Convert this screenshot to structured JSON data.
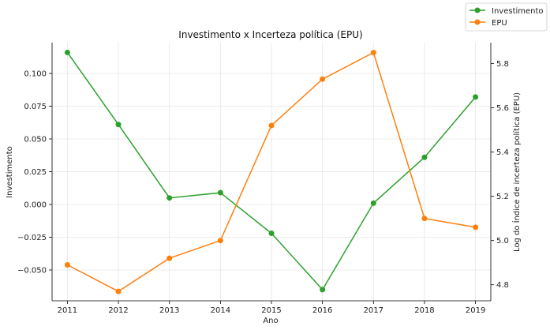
{
  "chart_data": {
    "type": "line",
    "title": "Investimento x Incerteza política (EPU)",
    "xlabel": "Ano",
    "ylabel_left": "Investimento",
    "ylabel_right": "Log do Índice de incerteza política (EPU)",
    "x": [
      2011,
      2012,
      2013,
      2014,
      2015,
      2016,
      2017,
      2018,
      2019
    ],
    "x_ticks": [
      "2011",
      "2012",
      "2013",
      "2014",
      "2015",
      "2016",
      "2017",
      "2018",
      "2019"
    ],
    "y_left_ticks": [
      "0.100",
      "0.075",
      "0.050",
      "0.025",
      "0.000",
      "−0.025",
      "−0.050"
    ],
    "y_left_tick_values": [
      0.1,
      0.075,
      0.05,
      0.025,
      0.0,
      -0.025,
      -0.05
    ],
    "y_right_ticks": [
      "5.8",
      "5.6",
      "5.4",
      "5.2",
      "5.0",
      "4.8"
    ],
    "y_right_tick_values": [
      5.8,
      5.6,
      5.4,
      5.2,
      5.0,
      4.8
    ],
    "ylim_left": [
      -0.0735,
      0.1235
    ],
    "ylim_right": [
      4.7276,
      5.8949
    ],
    "grid": true,
    "legend_position": "top-right",
    "series": [
      {
        "name": "Investimento",
        "axis": "left",
        "color": "#2ca02c",
        "values": [
          0.116,
          0.061,
          0.005,
          0.009,
          -0.022,
          -0.065,
          0.001,
          0.036,
          0.082
        ]
      },
      {
        "name": "EPU",
        "axis": "right",
        "color": "#ff7f0e",
        "values": [
          4.89,
          4.77,
          4.92,
          5.0,
          5.52,
          5.73,
          5.85,
          5.1,
          5.06
        ]
      }
    ]
  }
}
